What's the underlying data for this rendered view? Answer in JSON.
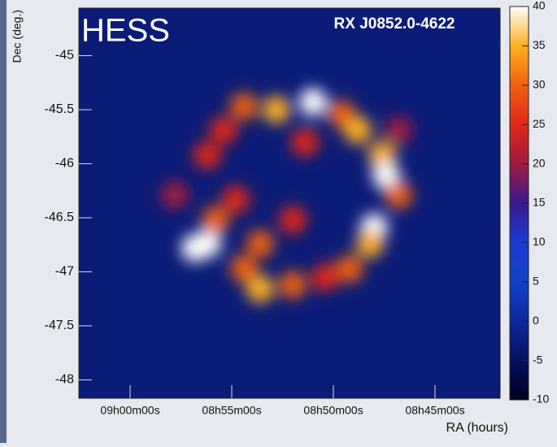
{
  "chart_data": {
    "type": "heatmap",
    "title": "HESS",
    "subtitle": "RX J0852.0-4622",
    "x_label": "RA (hours)",
    "y_label": "Dec (deg.)",
    "xlim": [
      542.52,
      521.8
    ],
    "xticks": [
      {
        "value": 540,
        "label": "09h00m00s"
      },
      {
        "value": 535,
        "label": "08h55m00s"
      },
      {
        "value": 530,
        "label": "08h50m00s"
      },
      {
        "value": 525,
        "label": "08h45m00s"
      }
    ],
    "ylim": [
      -48.17,
      -44.56
    ],
    "yticks": [
      -45,
      -45.5,
      -46,
      -46.5,
      -47,
      -47.5,
      -48
    ],
    "background_color": "#0b1c78",
    "colorbar": {
      "lim": [
        -10,
        40
      ],
      "ticks": [
        -10,
        -5,
        0,
        5,
        10,
        15,
        20,
        25,
        30,
        35,
        40
      ],
      "colors": [
        "#000020",
        "#061060",
        "#0b2a9e",
        "#1240c8",
        "#1a3ad0",
        "#3a1a90",
        "#a01a40",
        "#e02818",
        "#f06010",
        "#ffb020",
        "#ffffff"
      ]
    },
    "x": [
      531.0,
      532.8,
      534.4,
      529.6,
      528.8,
      527.6,
      527.4,
      526.8,
      528.0,
      528.2,
      529.2,
      531.4,
      536.2,
      536.8,
      535.8,
      534.8,
      535.4,
      536.2,
      534.4,
      533.6,
      532.0,
      530.4,
      533.6,
      532.0,
      537.8,
      526.8
    ],
    "y": [
      -45.43,
      -45.5,
      -45.47,
      -45.54,
      -45.69,
      -45.92,
      -46.11,
      -46.29,
      -46.59,
      -46.74,
      -46.97,
      -45.8,
      -46.74,
      -46.78,
      -46.52,
      -46.33,
      -45.69,
      -45.92,
      -46.97,
      -47.16,
      -47.12,
      -47.05,
      -46.74,
      -46.52,
      -46.29,
      -45.69
    ],
    "values": [
      40,
      35,
      30,
      30,
      35,
      35,
      40,
      30,
      40,
      35,
      30,
      25,
      40,
      40,
      30,
      25,
      25,
      25,
      30,
      35,
      30,
      25,
      30,
      25,
      20,
      20
    ]
  }
}
